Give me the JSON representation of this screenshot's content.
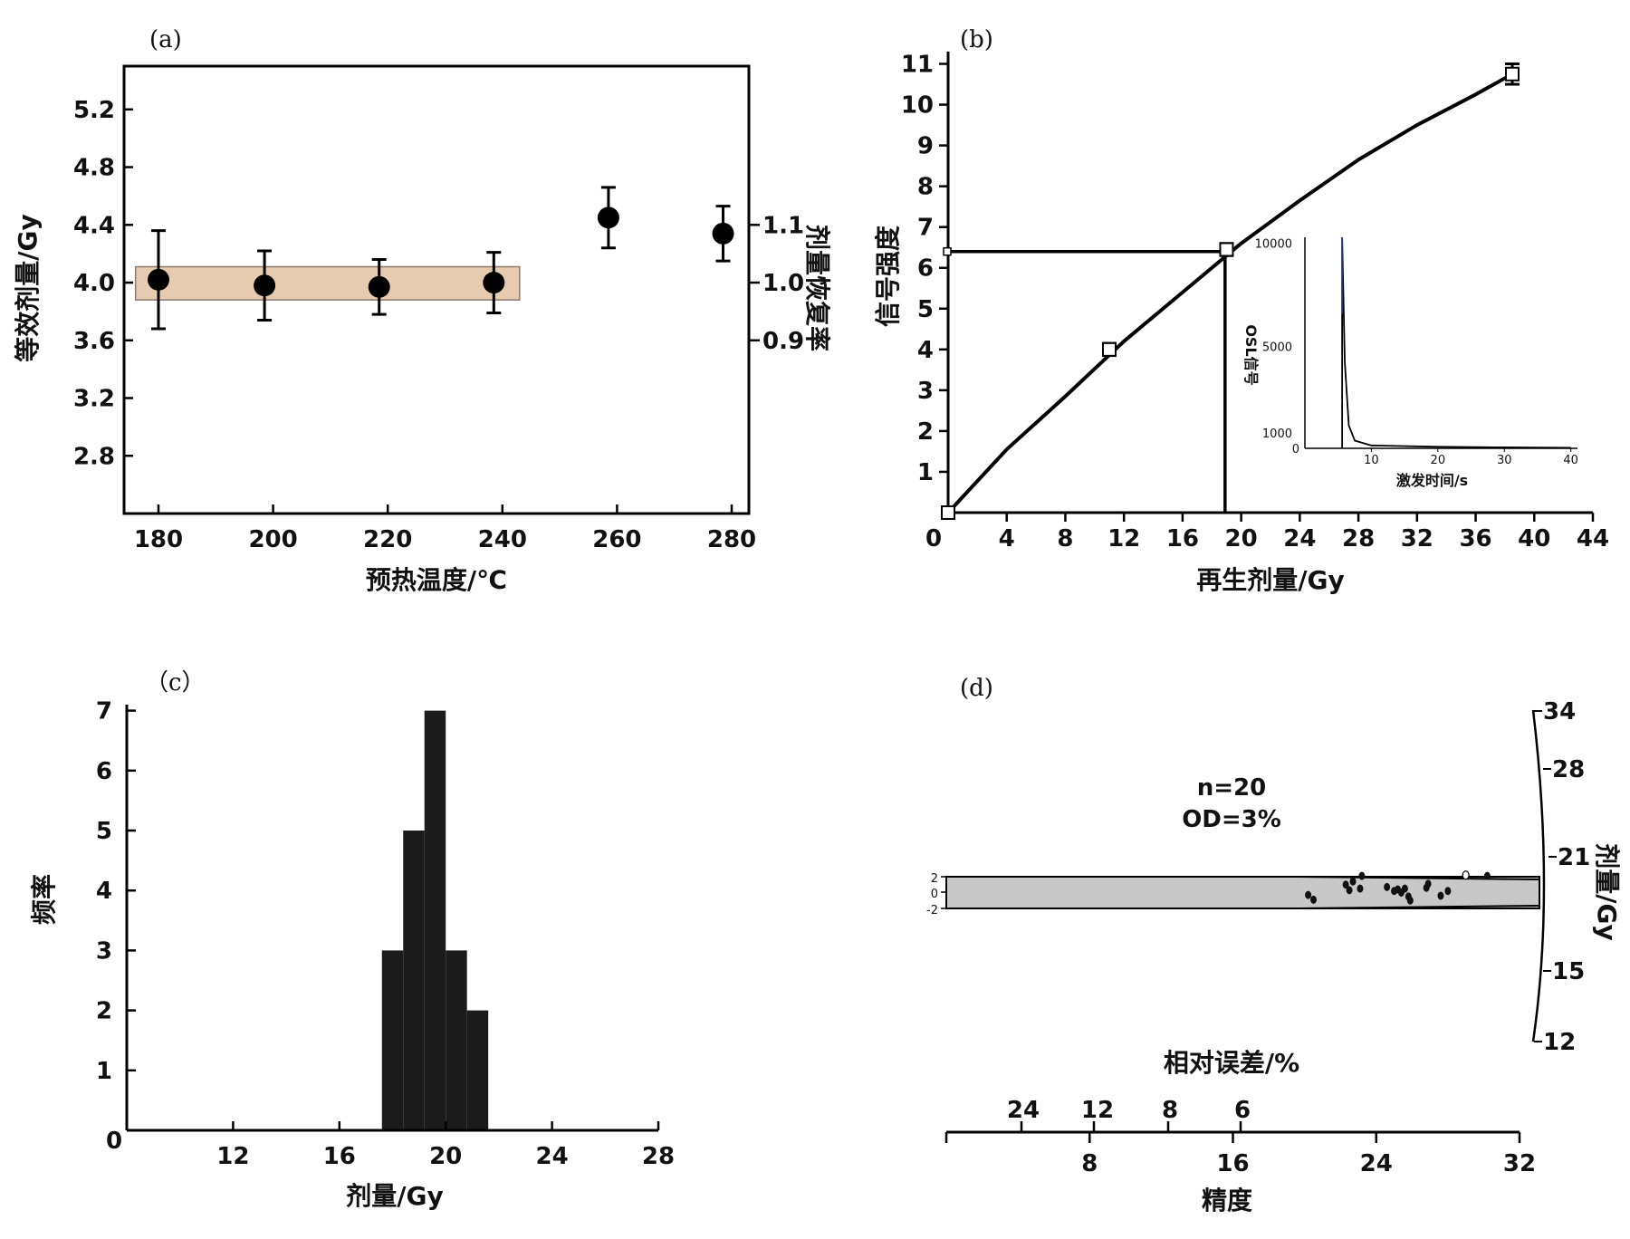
{
  "chart_data": [
    {
      "panel": "(a)",
      "type": "scatter",
      "xlabel": "预热温度/℃",
      "ylabel": "等效剂量/Gy",
      "y2label": "剂量恢复率",
      "xticks": [
        "180",
        "200",
        "220",
        "240",
        "260",
        "280"
      ],
      "yticks": [
        "2.8",
        "3.2",
        "3.6",
        "4.0",
        "4.4",
        "4.8",
        "5.2"
      ],
      "y2ticks": [
        "0.9",
        "1.0",
        "1.1"
      ],
      "xlim": [
        174,
        283
      ],
      "ylim": [
        2.4,
        5.5
      ],
      "band": {
        "x": [
          176,
          243
        ],
        "y": [
          3.88,
          4.11
        ]
      },
      "points": [
        {
          "x": 180,
          "y": 4.02,
          "err": 0.34
        },
        {
          "x": 198.5,
          "y": 3.98,
          "err": 0.24
        },
        {
          "x": 218.5,
          "y": 3.97,
          "err": 0.19
        },
        {
          "x": 238.5,
          "y": 4.0,
          "err": 0.21
        },
        {
          "x": 258.5,
          "y": 4.45,
          "err": 0.21
        },
        {
          "x": 278.5,
          "y": 4.34,
          "err": 0.19
        }
      ]
    },
    {
      "panel": "(b)",
      "type": "line",
      "xlabel": "再生剂量/Gy",
      "ylabel": "信号强度",
      "xticks": [
        "0",
        "4",
        "8",
        "12",
        "16",
        "20",
        "24",
        "28",
        "32",
        "36",
        "40",
        "44"
      ],
      "yticks": [
        "1",
        "2",
        "3",
        "4",
        "5",
        "6",
        "7",
        "8",
        "9",
        "10",
        "11"
      ],
      "xlim": [
        0,
        44
      ],
      "ylim": [
        0,
        11.3
      ],
      "curve": [
        [
          0,
          0
        ],
        [
          4,
          1.55
        ],
        [
          8,
          2.85
        ],
        [
          12,
          4.2
        ],
        [
          16,
          5.4
        ],
        [
          20,
          6.6
        ],
        [
          24,
          7.65
        ],
        [
          28,
          8.65
        ],
        [
          32,
          9.5
        ],
        [
          36,
          10.25
        ],
        [
          38.5,
          10.75
        ]
      ],
      "points": [
        {
          "x": 0,
          "y": 0,
          "err": 0.1
        },
        {
          "x": 11,
          "y": 4.0,
          "err": 0.15
        },
        {
          "x": 19,
          "y": 6.45,
          "err": 0.15
        },
        {
          "x": 38.5,
          "y": 10.75,
          "err": 0.25
        }
      ],
      "interpolation": {
        "x": 18.9,
        "y": 6.4
      },
      "inset": {
        "type": "line",
        "xlabel": "激发时间/s",
        "ylabel": "OSL信号",
        "xticks": [
          "10",
          "20",
          "30",
          "40"
        ],
        "yticks": [
          "0",
          "1000",
          "5000",
          "10000"
        ],
        "xlim": [
          0,
          41
        ],
        "ylim": [
          0,
          11000
        ],
        "curve": [
          [
            5.6,
            0
          ],
          [
            5.6,
            11000
          ],
          [
            6.0,
            4500
          ],
          [
            6.6,
            1200
          ],
          [
            7.5,
            400
          ],
          [
            10,
            150
          ],
          [
            20,
            80
          ],
          [
            30,
            50
          ],
          [
            40,
            30
          ]
        ]
      }
    },
    {
      "panel": "(c)",
      "type": "bar",
      "xlabel": "剂量/Gy",
      "ylabel": "频率",
      "xticks": [
        "0",
        "12",
        "16",
        "20",
        "24",
        "28"
      ],
      "yticks": [
        "1",
        "2",
        "3",
        "4",
        "5",
        "6",
        "7"
      ],
      "xlim": [
        8,
        28
      ],
      "ylim": [
        0,
        7.1
      ],
      "bins": [
        {
          "x0": 17.6,
          "x1": 18.4,
          "count": 3
        },
        {
          "x0": 18.4,
          "x1": 19.2,
          "count": 5
        },
        {
          "x0": 19.2,
          "x1": 20.0,
          "count": 7
        },
        {
          "x0": 20.0,
          "x1": 20.8,
          "count": 3
        },
        {
          "x0": 20.8,
          "x1": 21.6,
          "count": 2
        }
      ]
    },
    {
      "panel": "(d)",
      "type": "scatter",
      "title_lines": [
        "n=20",
        "OD=3%"
      ],
      "xlabel": "精度",
      "top_axis_label": "相对误差/%",
      "right_axis_label": "剂量/Gy",
      "xticks": [
        "8",
        "16",
        "24",
        "32"
      ],
      "top_ticks": [
        "24",
        "12",
        "8",
        "6"
      ],
      "right_ticks": [
        "34",
        "28",
        "21",
        "15",
        "12"
      ],
      "left_ticks": [
        "2",
        "0",
        "-2"
      ],
      "xlim": [
        0,
        32
      ],
      "points": [
        {
          "precision": 20.2,
          "z": -0.3
        },
        {
          "precision": 20.5,
          "z": -0.9
        },
        {
          "precision": 22.3,
          "z": 1.0
        },
        {
          "precision": 22.5,
          "z": 0.3
        },
        {
          "precision": 22.7,
          "z": 1.4
        },
        {
          "precision": 23.1,
          "z": 0.5
        },
        {
          "precision": 23.2,
          "z": 2.1
        },
        {
          "precision": 24.6,
          "z": 0.7
        },
        {
          "precision": 25.0,
          "z": 0.2
        },
        {
          "precision": 25.2,
          "z": 0.4
        },
        {
          "precision": 25.4,
          "z": 0.0
        },
        {
          "precision": 25.6,
          "z": 0.5
        },
        {
          "precision": 25.8,
          "z": -0.5
        },
        {
          "precision": 25.9,
          "z": -1.0
        },
        {
          "precision": 26.8,
          "z": 0.6
        },
        {
          "precision": 26.9,
          "z": 1.1
        },
        {
          "precision": 27.6,
          "z": -0.4
        },
        {
          "precision": 28.0,
          "z": 0.2
        },
        {
          "precision": 29.0,
          "z": 2.2,
          "open": true
        },
        {
          "precision": 30.2,
          "z": 2.1
        }
      ]
    }
  ]
}
